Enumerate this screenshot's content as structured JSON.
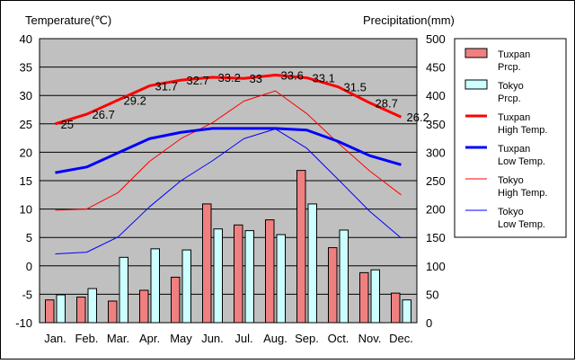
{
  "chart_data": {
    "type": "bar",
    "left_axis_title": "Temperature(℃)",
    "right_axis_title": "Precipitation(mm)",
    "categories": [
      "Jan.",
      "Feb.",
      "Mar.",
      "Apr.",
      "May",
      "Jun.",
      "Jul.",
      "Aug.",
      "Sep.",
      "Oct.",
      "Nov.",
      "Dec."
    ],
    "left_ylim": [
      -10,
      40
    ],
    "left_ticks": [
      40,
      35,
      30,
      25,
      20,
      15,
      10,
      5,
      0,
      -5,
      -10
    ],
    "right_ylim": [
      0,
      500
    ],
    "right_ticks": [
      500,
      450,
      400,
      350,
      300,
      250,
      200,
      150,
      100,
      50,
      0
    ],
    "grid": true,
    "legend_position": "right",
    "bar_series": [
      {
        "name": "Tuxpan Prcp.",
        "color": "#f08080",
        "values": [
          40,
          45,
          38,
          57,
          80,
          209,
          172,
          181,
          268,
          132,
          88,
          52
        ]
      },
      {
        "name": "Tokyo Prcp.",
        "color": "#ccffff",
        "values": [
          49,
          60,
          115,
          130,
          128,
          165,
          162,
          155,
          209,
          163,
          93,
          40
        ]
      }
    ],
    "line_series": [
      {
        "name": "Tuxpan High Temp.",
        "color": "#ff0000",
        "width": 3,
        "values": [
          25,
          26.7,
          29.2,
          31.7,
          32.7,
          33.2,
          33,
          33.6,
          33.1,
          31.5,
          28.7,
          26.2
        ],
        "labels": [
          "25",
          "26.7",
          "29.2",
          "31.7",
          "32.7",
          "33.2",
          "33",
          "33.6",
          "33.1",
          "31.5",
          "28.7",
          "26.2"
        ]
      },
      {
        "name": "Tuxpan Low Temp.",
        "color": "#0000ff",
        "width": 3,
        "values": [
          16.4,
          17.4,
          19.9,
          22.4,
          23.5,
          24.2,
          24.2,
          24.2,
          23.9,
          21.9,
          19.4,
          17.8
        ]
      },
      {
        "name": "Tokyo High Temp.",
        "color": "#ff0000",
        "width": 1,
        "values": [
          9.8,
          10,
          12.9,
          18.4,
          22.4,
          25.2,
          29,
          30.8,
          26.8,
          21.6,
          16.7,
          12.5
        ]
      },
      {
        "name": "Tokyo Low Temp.",
        "color": "#0000ff",
        "width": 1,
        "values": [
          2.1,
          2.4,
          5.1,
          10.4,
          15,
          18.5,
          22.4,
          24.1,
          20.7,
          15.2,
          9.6,
          4.9
        ]
      }
    ],
    "legend_items": [
      {
        "line1": "Tuxpan",
        "line2": "Prcp.",
        "kind": "bar",
        "color": "#f08080"
      },
      {
        "line1": "Tokyo",
        "line2": "Prcp.",
        "kind": "bar",
        "color": "#ccffff"
      },
      {
        "line1": "Tuxpan",
        "line2": "High Temp.",
        "kind": "line",
        "color": "#ff0000",
        "width": 3
      },
      {
        "line1": "Tuxpan",
        "line2": "Low Temp.",
        "kind": "line",
        "color": "#0000ff",
        "width": 3
      },
      {
        "line1": "Tokyo",
        "line2": "High Temp.",
        "kind": "line",
        "color": "#ff0000",
        "width": 1
      },
      {
        "line1": "Tokyo",
        "line2": "Low Temp.",
        "kind": "line",
        "color": "#0000ff",
        "width": 1
      }
    ],
    "plot_background": "#c0c0c0"
  }
}
